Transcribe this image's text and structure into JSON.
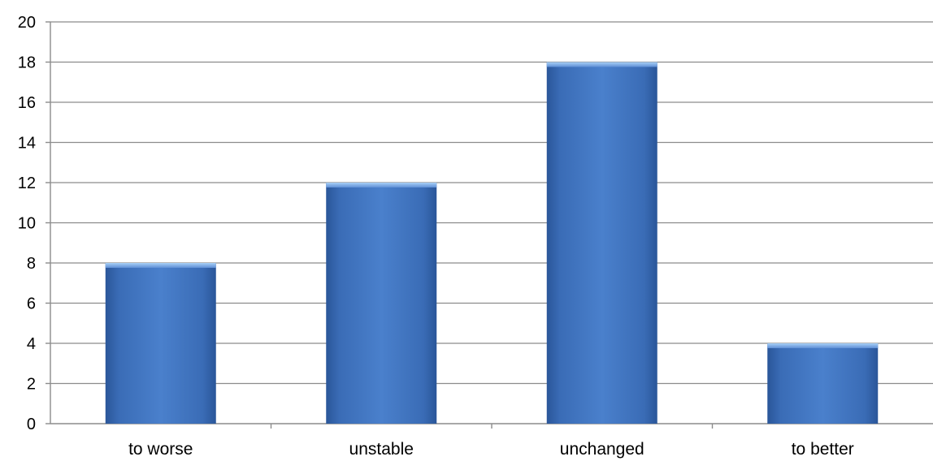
{
  "chart_data": {
    "type": "bar",
    "title": "",
    "xlabel": "",
    "ylabel": "",
    "categories": [
      "to worse",
      "unstable",
      "unchanged",
      "to better"
    ],
    "values": [
      8,
      12,
      18,
      4
    ],
    "ylim": [
      0,
      20
    ],
    "yticks": [
      0,
      2,
      4,
      6,
      8,
      10,
      12,
      14,
      16,
      18,
      20
    ],
    "grid": true,
    "legend": "none",
    "colors": {
      "bar_main": "#3f72bd",
      "bar_dark": "#2a5699",
      "bar_light": "#6f9be0",
      "bar_cap": "#8fbcf0",
      "grid": "#8c8c8c",
      "text": "#000000"
    }
  }
}
